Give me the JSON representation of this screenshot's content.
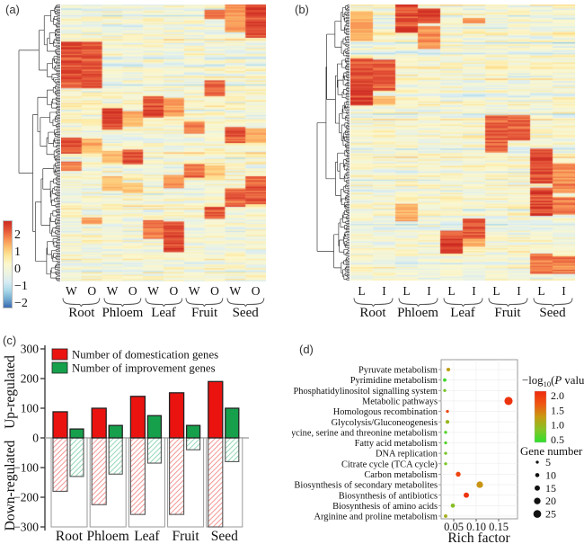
{
  "panels": {
    "a": {
      "label": "(a)"
    },
    "b": {
      "label": "(b)"
    },
    "c": {
      "label": "(c)"
    },
    "d": {
      "label": "(d)"
    }
  },
  "chart_data": [
    {
      "type": "heatmap",
      "panel": "a",
      "columns": [
        "W",
        "O",
        "W",
        "O",
        "W",
        "O",
        "W",
        "O",
        "W",
        "O"
      ],
      "groups": [
        "Root",
        "Phloem",
        "Leaf",
        "Fruit",
        "Seed"
      ],
      "n_rows": 208,
      "colorbar": {
        "tick_labels": [
          "2",
          "1",
          "0",
          "−1",
          "−2"
        ],
        "values": [
          2,
          1,
          0,
          -1,
          -2
        ]
      },
      "palette_top_to_bottom": [
        "#cd2a20",
        "#e35236",
        "#f78a50",
        "#fdc06e",
        "#fee79a",
        "#fbf7cf",
        "#edf4e0",
        "#d9ecf4",
        "#abd9e9",
        "#74add1",
        "#3a68b0"
      ],
      "hot_blocks": [
        [
          9,
          0.0,
          0.12,
          2.3
        ],
        [
          8,
          0.0,
          0.1,
          1.4
        ],
        [
          7,
          0.015,
          0.05,
          1.8
        ],
        [
          0,
          0.13,
          0.3,
          2.2
        ],
        [
          1,
          0.13,
          0.3,
          2.0
        ],
        [
          7,
          0.27,
          0.33,
          2.0
        ],
        [
          4,
          0.33,
          0.405,
          2.2
        ],
        [
          5,
          0.335,
          0.4,
          1.4
        ],
        [
          2,
          0.375,
          0.45,
          2.3
        ],
        [
          3,
          0.38,
          0.44,
          1.2
        ],
        [
          6,
          0.42,
          0.465,
          1.7
        ],
        [
          8,
          0.44,
          0.5,
          2.2
        ],
        [
          9,
          0.445,
          0.5,
          1.3
        ],
        [
          0,
          0.48,
          0.535,
          2.2
        ],
        [
          1,
          0.485,
          0.53,
          1.2
        ],
        [
          3,
          0.52,
          0.575,
          2.2
        ],
        [
          2,
          0.525,
          0.57,
          1.2
        ],
        [
          0,
          0.565,
          0.6,
          1.9
        ],
        [
          6,
          0.575,
          0.625,
          1.9
        ],
        [
          7,
          0.58,
          0.62,
          1.1
        ],
        [
          5,
          0.615,
          0.66,
          1.6
        ],
        [
          2,
          0.62,
          0.67,
          1.1
        ],
        [
          3,
          0.64,
          0.68,
          1.0
        ],
        [
          9,
          0.62,
          0.72,
          2.1
        ],
        [
          8,
          0.66,
          0.73,
          1.9
        ],
        [
          7,
          0.73,
          0.77,
          2.1
        ],
        [
          1,
          0.765,
          0.79,
          1.4
        ],
        [
          4,
          0.775,
          0.845,
          1.8
        ],
        [
          5,
          0.78,
          0.89,
          2.3
        ]
      ]
    },
    {
      "type": "heatmap",
      "panel": "b",
      "columns": [
        "L",
        "I",
        "L",
        "I",
        "L",
        "I",
        "L",
        "I",
        "L",
        "I"
      ],
      "groups": [
        "Root",
        "Phloem",
        "Leaf",
        "Fruit",
        "Seed"
      ],
      "n_rows": 205,
      "hot_blocks": [
        [
          2,
          0.0,
          0.1,
          2.2
        ],
        [
          3,
          0.01,
          0.065,
          2.3
        ],
        [
          3,
          0.075,
          0.16,
          1.5
        ],
        [
          0,
          0.02,
          0.13,
          1.3
        ],
        [
          5,
          0.045,
          0.065,
          1.6
        ],
        [
          0,
          0.195,
          0.315,
          2.3
        ],
        [
          1,
          0.2,
          0.31,
          2.0
        ],
        [
          0,
          0.315,
          0.365,
          2.4
        ],
        [
          1,
          0.33,
          0.36,
          1.2
        ],
        [
          6,
          0.4,
          0.5,
          2.0
        ],
        [
          7,
          0.4,
          0.49,
          2.1
        ],
        [
          6,
          0.5,
          0.535,
          2.2
        ],
        [
          8,
          0.52,
          0.645,
          2.3
        ],
        [
          9,
          0.575,
          0.68,
          1.6
        ],
        [
          8,
          0.66,
          0.765,
          2.3
        ],
        [
          9,
          0.695,
          0.76,
          1.8
        ],
        [
          2,
          0.72,
          0.785,
          1.3
        ],
        [
          5,
          0.775,
          0.845,
          2.2
        ],
        [
          4,
          0.815,
          0.9,
          2.3
        ],
        [
          5,
          0.845,
          0.875,
          1.3
        ],
        [
          8,
          0.9,
          0.975,
          1.8
        ],
        [
          9,
          0.91,
          0.975,
          1.7
        ]
      ]
    },
    {
      "type": "bar",
      "panel": "c",
      "categories": [
        "Root",
        "Phloem",
        "Leaf",
        "Fruit",
        "Seed"
      ],
      "series": [
        {
          "name": "Number of domestication genes",
          "color": "#ea1310",
          "hatch_color": "#f37d7c",
          "up": [
            88,
            100,
            140,
            152,
            190
          ],
          "down": [
            -180,
            -225,
            -258,
            -258,
            -300
          ]
        },
        {
          "name": "Number of improvement genes",
          "color": "#16a04c",
          "hatch_color": "#77cfa4",
          "up": [
            30,
            42,
            75,
            42,
            100
          ],
          "down": [
            -130,
            -122,
            -85,
            -40,
            -80
          ]
        }
      ],
      "ylabel_up": "Up-regulated",
      "ylabel_down": "Down-regulated",
      "yticks": [
        300,
        200,
        100,
        0,
        -100,
        -200,
        -300
      ],
      "ylim": [
        -300,
        300
      ]
    },
    {
      "type": "scatter",
      "panel": "d",
      "xlabel": "Rich factor",
      "xticks": [
        0.05,
        0.1,
        0.15
      ],
      "xlim": [
        0.022,
        0.192
      ],
      "color_legend": {
        "title_parts": [
          "−log",
          "10",
          "(",
          "P",
          " value)"
        ],
        "ticks": [
          2.0,
          1.5,
          1.0,
          0.5
        ],
        "min": 0.4,
        "max": 2.35,
        "gradient_top_to_bottom": [
          "#ee2a0d",
          "#ef5512",
          "#c79a10",
          "#86c425",
          "#2ee02e"
        ]
      },
      "size_legend": {
        "title": "Gene number",
        "values": [
          5,
          10,
          15,
          20,
          25
        ]
      },
      "points": [
        {
          "pathway": "Pyruvate metabolism",
          "rich_factor": 0.038,
          "gene_number": 8,
          "neg_log10_p": 1.3
        },
        {
          "pathway": "Pyrimidine metabolism",
          "rich_factor": 0.03,
          "gene_number": 7,
          "neg_log10_p": 0.5
        },
        {
          "pathway": "Phosphatidylinositol signalling system",
          "rich_factor": 0.03,
          "gene_number": 5,
          "neg_log10_p": 0.8
        },
        {
          "pathway": "Metabolic pathways",
          "rich_factor": 0.172,
          "gene_number": 27,
          "neg_log10_p": 2.2
        },
        {
          "pathway": "Homologous recombination",
          "rich_factor": 0.036,
          "gene_number": 5,
          "neg_log10_p": 2.0
        },
        {
          "pathway": "Glycolysis/Gluconeogenesis",
          "rich_factor": 0.036,
          "gene_number": 8,
          "neg_log10_p": 1.0
        },
        {
          "pathway": "Glycine, serine and threonine metabolism",
          "rich_factor": 0.032,
          "gene_number": 5,
          "neg_log10_p": 0.6
        },
        {
          "pathway": "Fatty acid metabolism",
          "rich_factor": 0.032,
          "gene_number": 5,
          "neg_log10_p": 0.6
        },
        {
          "pathway": "DNA replication",
          "rich_factor": 0.032,
          "gene_number": 5,
          "neg_log10_p": 0.8
        },
        {
          "pathway": "Citrate cycle (TCA cycle)",
          "rich_factor": 0.032,
          "gene_number": 5,
          "neg_log10_p": 0.8
        },
        {
          "pathway": "Carbon metabolism",
          "rich_factor": 0.06,
          "gene_number": 13,
          "neg_log10_p": 2.0
        },
        {
          "pathway": "Biosynthesis of secondary metabolites",
          "rich_factor": 0.108,
          "gene_number": 20,
          "neg_log10_p": 1.4
        },
        {
          "pathway": "Biosynthesis of antibiotics",
          "rich_factor": 0.078,
          "gene_number": 15,
          "neg_log10_p": 2.2
        },
        {
          "pathway": "Biosynthesis of amino acids",
          "rich_factor": 0.048,
          "gene_number": 10,
          "neg_log10_p": 0.9
        },
        {
          "pathway": "Arginine and proline metabolism",
          "rich_factor": 0.032,
          "gene_number": 7,
          "neg_log10_p": 1.1
        }
      ]
    }
  ]
}
